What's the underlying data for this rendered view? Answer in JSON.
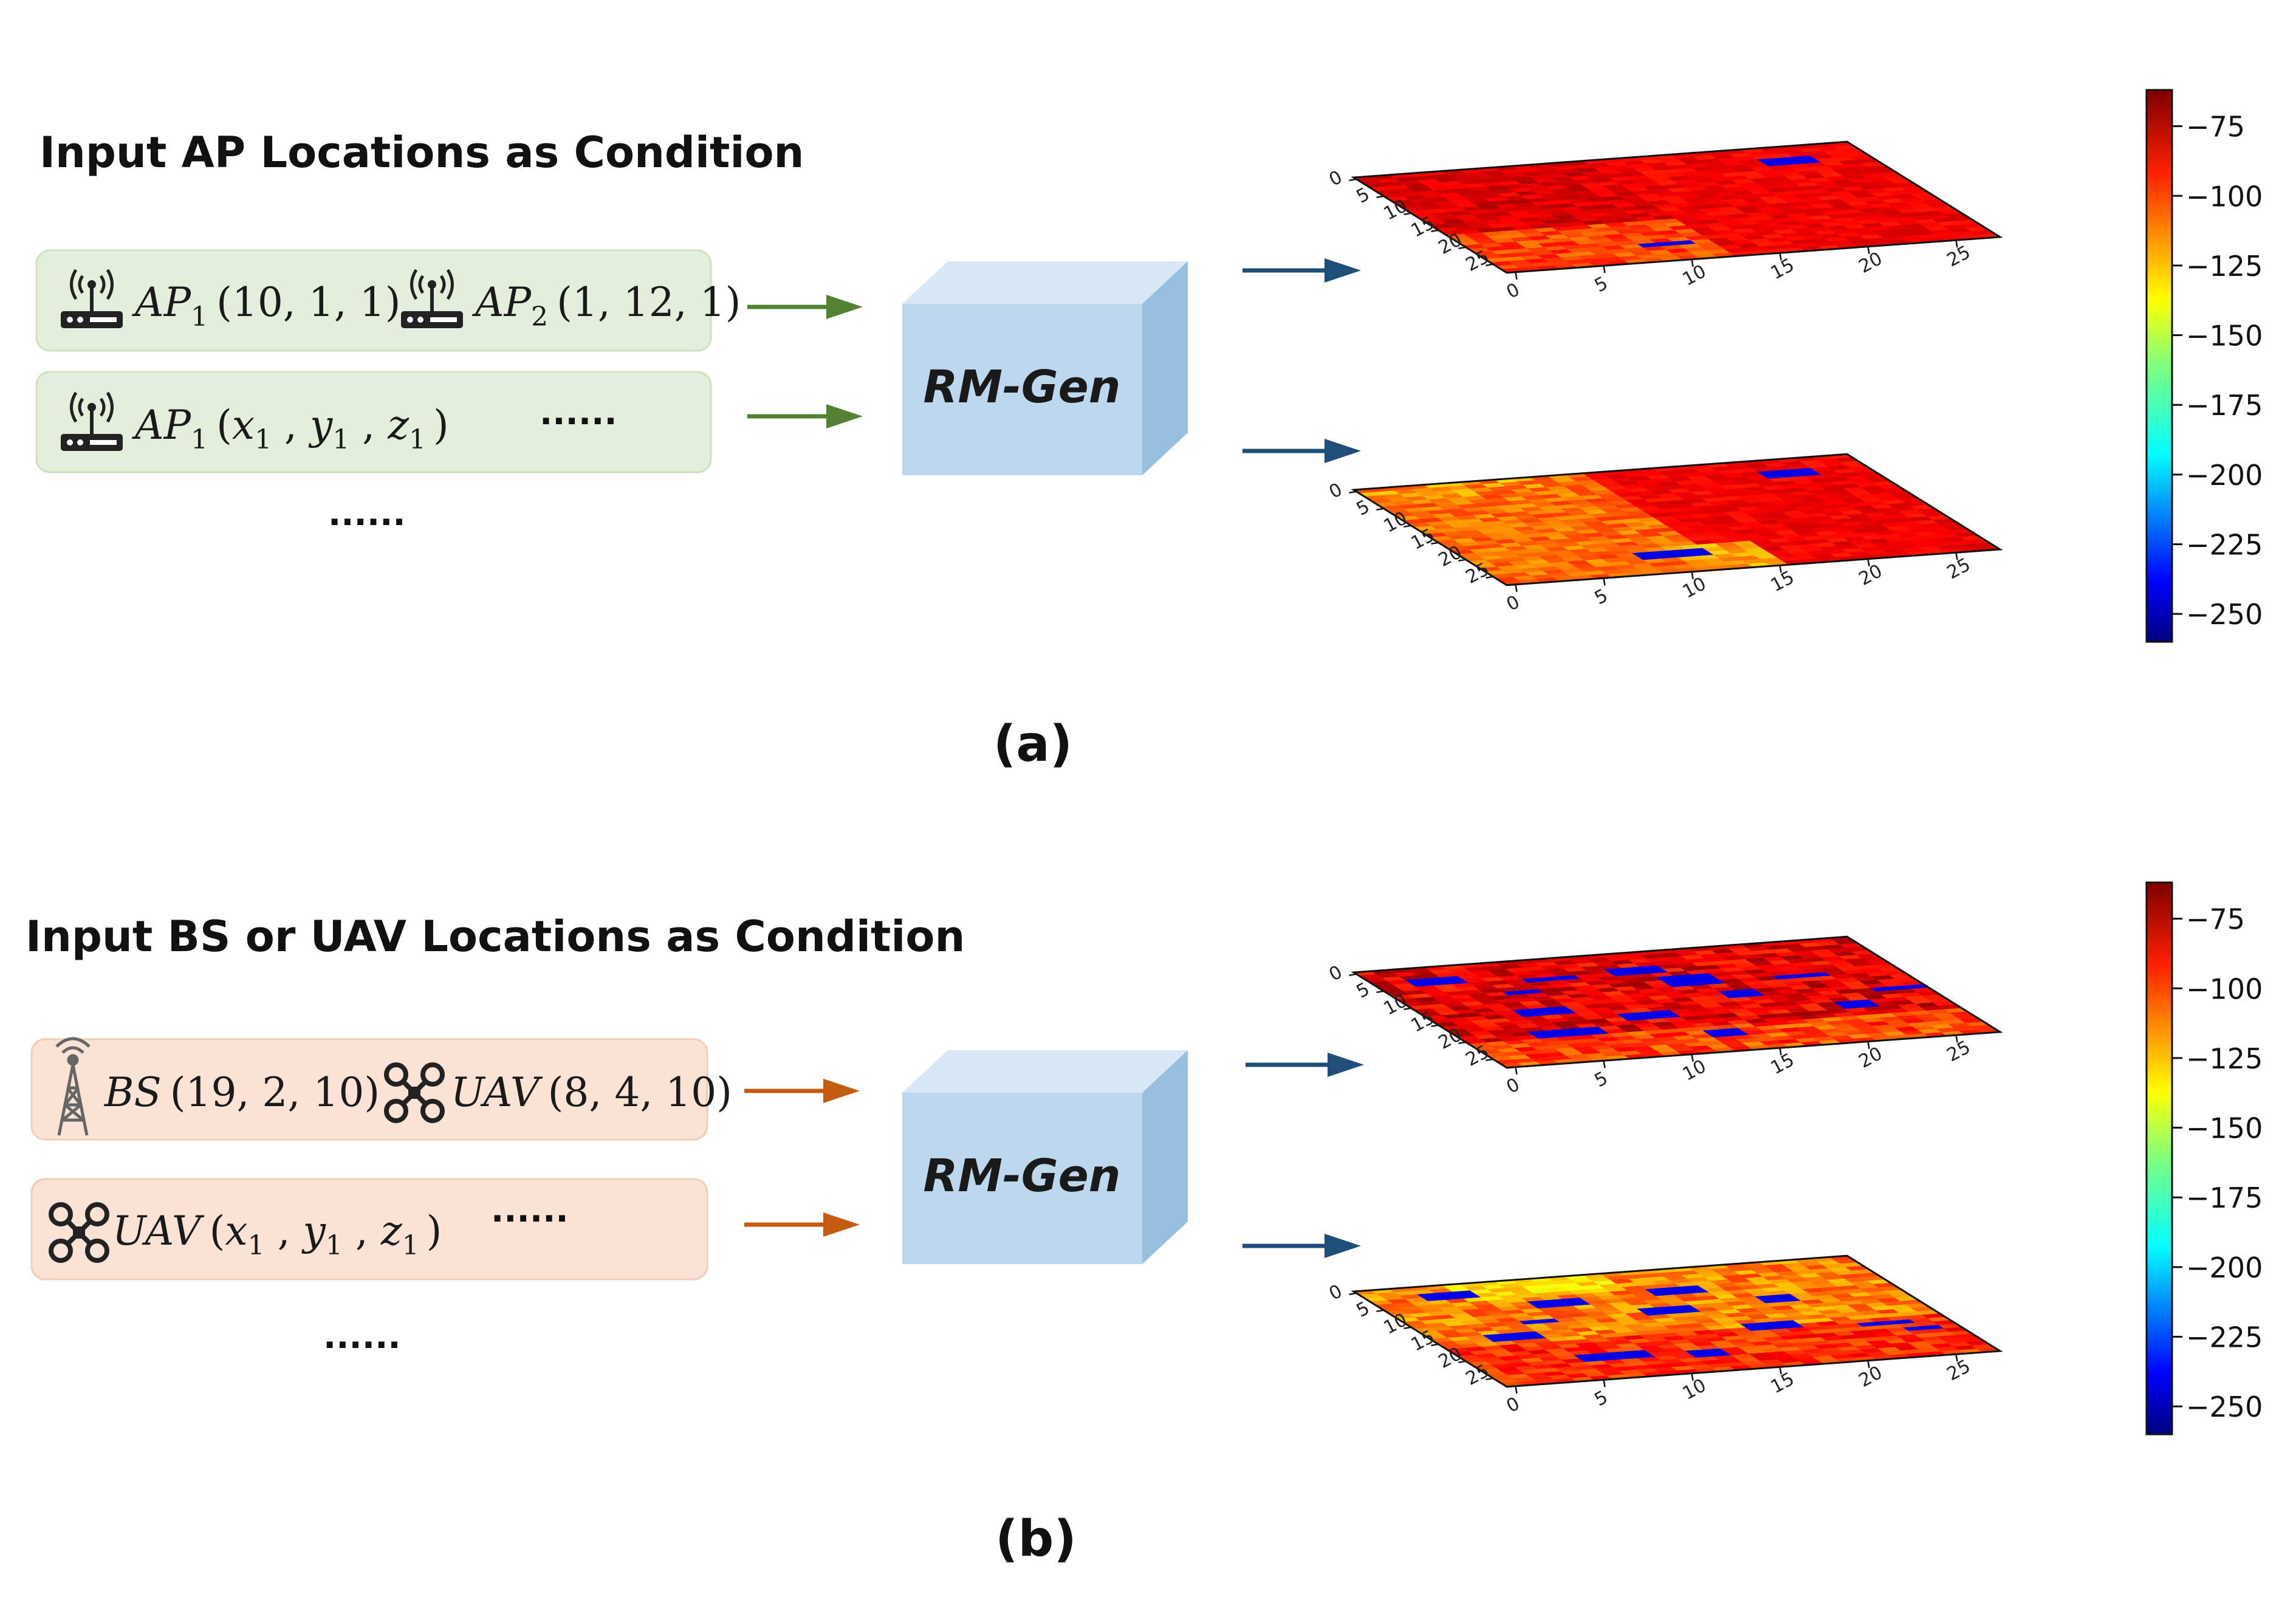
{
  "panels": [
    {
      "caption": "(a)",
      "title": "Input AP Locations as Condition",
      "theme": {
        "fill": "#e3efda",
        "stroke": "#cfe0c2",
        "arrow": "#548235"
      },
      "row1": [
        {
          "icon": "router-icon",
          "name": "AP",
          "sub": "1",
          "coords": "(10, 1, 1)"
        },
        {
          "icon": "router-icon",
          "name": "AP",
          "sub": "2",
          "coords": "(1, 12, 1)"
        }
      ],
      "row2": {
        "icon": "router-icon",
        "name": "AP",
        "sub": "1",
        "open": "(",
        "x": "x",
        "y": "y",
        "z": "z",
        "sub_xyz": "1",
        "close": ")",
        "dots": "······"
      },
      "more_dots": "······",
      "model_label": "RM-Gen",
      "maps": [
        {
          "high_quadrant": "right",
          "blocks": [
            [
              5,
              22,
              2,
              2
            ],
            [
              24,
              7,
              3,
              1
            ]
          ],
          "label": "upper radio map"
        },
        {
          "high_quadrant": "right-low",
          "blocks": [
            [
              7,
              22,
              2,
              2
            ],
            [
              23,
              7,
              3,
              1
            ]
          ],
          "label": "lower radio map"
        }
      ]
    },
    {
      "caption": "(b)",
      "title": "Input BS or UAV Locations as Condition",
      "theme": {
        "fill": "#fae3d4",
        "stroke": "#f0cdb7",
        "arrow": "#c55a11"
      },
      "row1": [
        {
          "icon": "tower-icon",
          "name": "BS",
          "sub": "",
          "coords": "(19, 2, 10)"
        },
        {
          "icon": "drone-icon",
          "name": "UAV",
          "sub": "",
          "coords": "(8, 4, 10)"
        }
      ],
      "row2": {
        "icon": "drone-icon",
        "name": "UAV",
        "sub": "",
        "open": "(",
        "x": "x",
        "y": "y",
        "z": "z",
        "sub_xyz": "1",
        "close": ")",
        "dots": "······"
      },
      "more_dots": "······",
      "model_label": "RM-Gen",
      "maps": [
        {
          "label": "upper radio map"
        },
        {
          "label": "lower radio map"
        }
      ]
    }
  ],
  "axis_ticks": [
    "0",
    "5",
    "10",
    "15",
    "20",
    "25"
  ],
  "colorbar": {
    "min": -260,
    "max": -62,
    "ticks": [
      "−75",
      "−100",
      "−125",
      "−150",
      "−175",
      "−200",
      "−225",
      "−250"
    ],
    "tick_values": [
      -75,
      -100,
      -125,
      -150,
      -175,
      -200,
      -225,
      -250
    ]
  },
  "chart_data": {
    "type": "heatmap",
    "grid_size": [
      28,
      28
    ],
    "value_range": [
      -250,
      -62
    ],
    "unit_hint": "colorbar",
    "colorbar_ticks": [
      -75,
      -100,
      -125,
      -150,
      -175,
      -200,
      -225,
      -250
    ]
  }
}
